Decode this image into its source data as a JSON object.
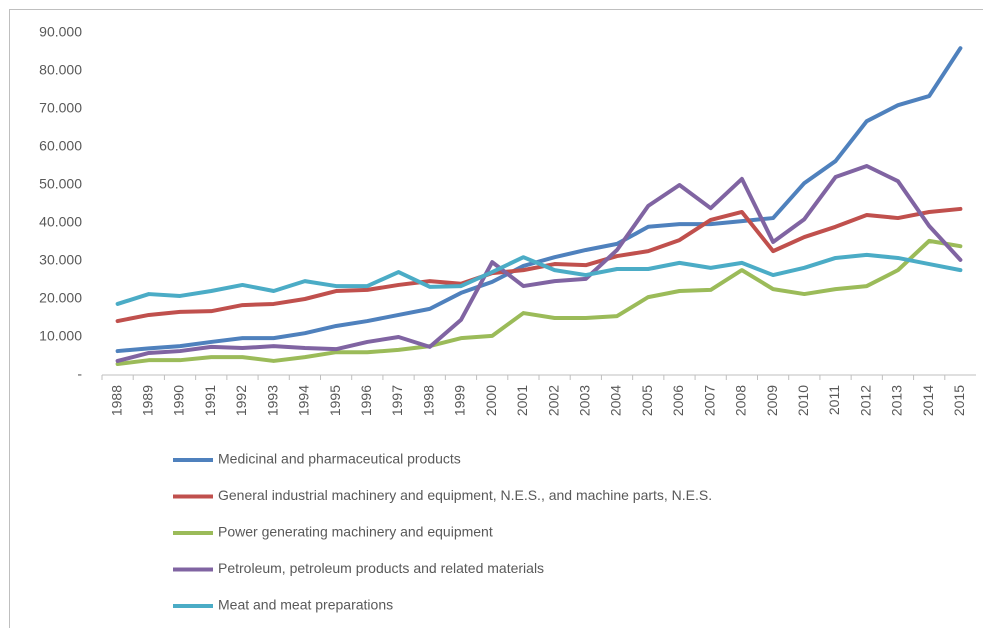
{
  "chart_data": {
    "type": "line",
    "categories": [
      "1988",
      "1989",
      "1990",
      "1991",
      "1992",
      "1993",
      "1994",
      "1995",
      "1996",
      "1997",
      "1998",
      "1999",
      "2000",
      "2001",
      "2002",
      "2003",
      "2004",
      "2005",
      "2006",
      "2007",
      "2008",
      "2009",
      "2010",
      "2011",
      "2012",
      "2013",
      "2014",
      "2015"
    ],
    "series": [
      {
        "name": "Medicinal and pharmaceutical products",
        "color": "#4f81bd",
        "values": [
          6300,
          7000,
          7600,
          8700,
          9700,
          9700,
          11000,
          12900,
          14200,
          15800,
          17400,
          21600,
          24500,
          28700,
          31000,
          32900,
          34500,
          39000,
          39700,
          39700,
          40500,
          41300,
          50500,
          56300,
          66800,
          71000,
          73400,
          86000
        ]
      },
      {
        "name": "General industrial machinery and equipment, N.E.S., and machine parts, N.E.S.",
        "color": "#c0504d",
        "values": [
          14200,
          15800,
          16600,
          16800,
          18400,
          18700,
          20000,
          22100,
          22400,
          23700,
          24700,
          24000,
          26800,
          27600,
          29200,
          28900,
          31300,
          32600,
          35500,
          40800,
          42900,
          32600,
          36300,
          39000,
          42100,
          41300,
          42900,
          43700
        ]
      },
      {
        "name": "Power generating machinery and equipment",
        "color": "#9bbb59",
        "values": [
          2900,
          3900,
          3900,
          4700,
          4700,
          3700,
          4700,
          6000,
          6000,
          6600,
          7600,
          9700,
          10300,
          16300,
          15000,
          15000,
          15500,
          20500,
          22100,
          22400,
          27600,
          22600,
          21300,
          22600,
          23400,
          27600,
          35300,
          33900
        ]
      },
      {
        "name": "Petroleum, petroleum products and related materials",
        "color": "#8064a2",
        "values": [
          3700,
          5800,
          6300,
          7400,
          7100,
          7600,
          7100,
          6800,
          8700,
          10000,
          7400,
          14500,
          29700,
          23400,
          24700,
          25300,
          32900,
          44500,
          50000,
          43900,
          51600,
          35000,
          41000,
          52100,
          55000,
          51000,
          39200,
          30300
        ]
      },
      {
        "name": "Meat and meat preparations",
        "color": "#4bacc6",
        "values": [
          18700,
          21300,
          20800,
          22100,
          23700,
          22100,
          24700,
          23400,
          23400,
          27100,
          23200,
          23400,
          27100,
          31000,
          27600,
          26300,
          27900,
          27900,
          29500,
          28200,
          29500,
          26300,
          28200,
          30800,
          31600,
          30800,
          29200,
          27600
        ]
      }
    ],
    "ylim": [
      0,
      90000
    ],
    "yticks": [
      {
        "value": 0,
        "label": "-"
      },
      {
        "value": 10000,
        "label": "10.000"
      },
      {
        "value": 20000,
        "label": "20.000"
      },
      {
        "value": 30000,
        "label": "30.000"
      },
      {
        "value": 40000,
        "label": "40.000"
      },
      {
        "value": 50000,
        "label": "50.000"
      },
      {
        "value": 60000,
        "label": "60.000"
      },
      {
        "value": 70000,
        "label": "70.000"
      },
      {
        "value": 80000,
        "label": "80.000"
      },
      {
        "value": 90000,
        "label": "90.000"
      }
    ],
    "grid": false,
    "legend": "bottom"
  }
}
